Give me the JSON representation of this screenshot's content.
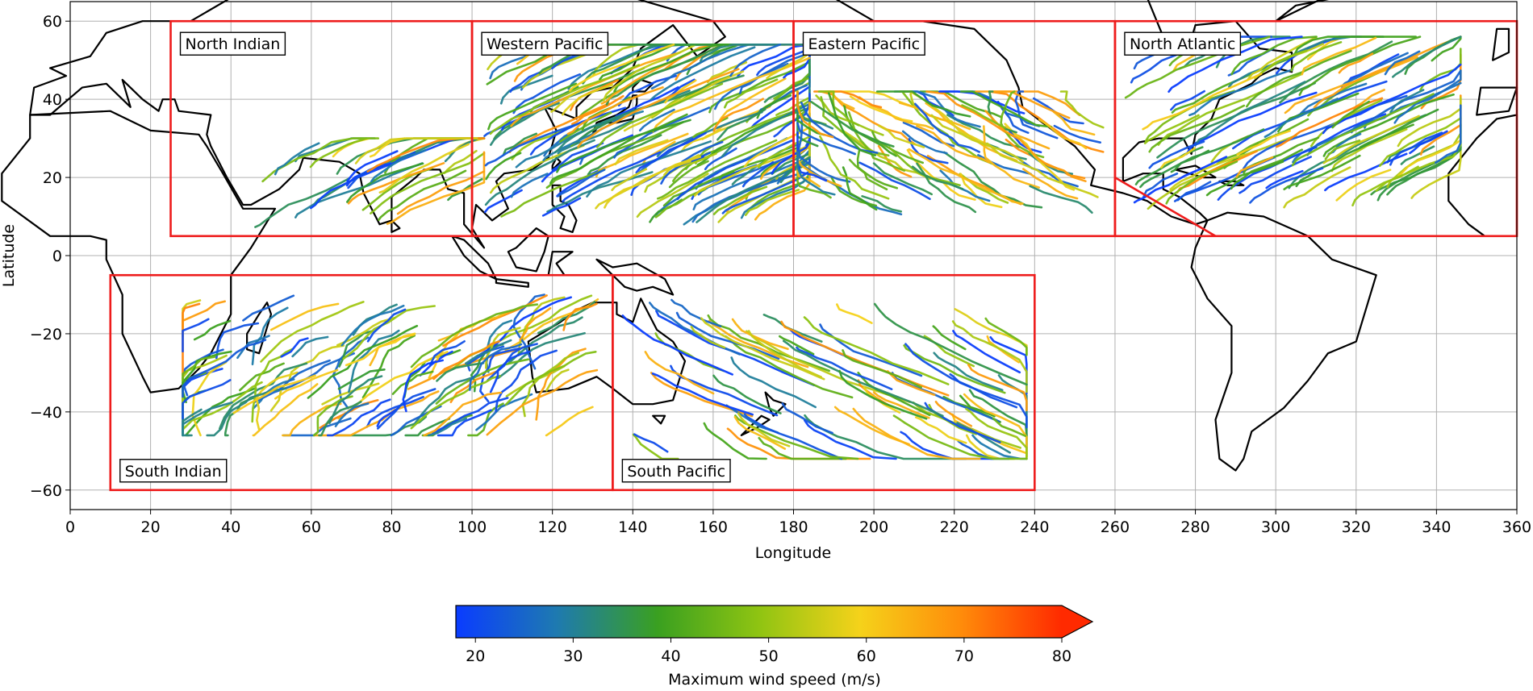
{
  "chart_data": {
    "type": "map",
    "title": "",
    "xlabel": "Longitude",
    "ylabel": "Latitude",
    "xlim": [
      0,
      360
    ],
    "ylim": [
      -65,
      65
    ],
    "xticks": [
      0,
      20,
      40,
      60,
      80,
      100,
      120,
      140,
      160,
      180,
      200,
      220,
      240,
      260,
      280,
      300,
      320,
      340,
      360
    ],
    "yticks": [
      -60,
      -40,
      -20,
      0,
      20,
      40,
      60
    ],
    "grid": true,
    "basins": [
      {
        "name": "North Indian",
        "lon": [
          25,
          100
        ],
        "lat": [
          5,
          60
        ]
      },
      {
        "name": "Western Pacific",
        "lon": [
          100,
          180
        ],
        "lat": [
          5,
          60
        ]
      },
      {
        "name": "Eastern Pacific",
        "lon": [
          180,
          260
        ],
        "lat": [
          5,
          60
        ]
      },
      {
        "name": "North Atlantic",
        "lon": [
          260,
          360
        ],
        "lat": [
          5,
          60
        ],
        "cutoff_line": [
          [
            260,
            20
          ],
          [
            285,
            5
          ]
        ]
      },
      {
        "name": "South Indian",
        "lon": [
          10,
          135
        ],
        "lat": [
          -60,
          -5
        ]
      },
      {
        "name": "South Pacific",
        "lon": [
          135,
          240
        ],
        "lat": [
          -60,
          -5
        ]
      }
    ],
    "track_clusters": [
      {
        "basin": "North Indian",
        "lon": [
          45,
          97
        ],
        "lat": [
          7,
          26
        ],
        "dir": 1,
        "count": 30
      },
      {
        "basin": "Western Pacific",
        "lon": [
          103,
          178
        ],
        "lat": [
          8,
          50
        ],
        "dir": 1,
        "count": 170
      },
      {
        "basin": "Eastern Pacific",
        "lon": [
          185,
          258
        ],
        "lat": [
          10,
          38
        ],
        "dir": -1,
        "count": 95
      },
      {
        "basin": "North Atlantic",
        "lon": [
          262,
          340
        ],
        "lat": [
          12,
          52
        ],
        "dir": 1,
        "count": 115
      },
      {
        "basin": "South Indian",
        "lon": [
          32,
          132
        ],
        "lat": [
          -42,
          -10
        ],
        "dir": -1,
        "count": 120
      },
      {
        "basin": "South Pacific",
        "lon": [
          137,
          232
        ],
        "lat": [
          -48,
          -11
        ],
        "dir": 1,
        "count": 85
      }
    ],
    "colorbar": {
      "label": "Maximum wind speed (m/s)",
      "min": 18,
      "max": 80,
      "extend": "max",
      "ticks": [
        20,
        30,
        40,
        50,
        60,
        70,
        80
      ],
      "colors": [
        "#0a3cff",
        "#1e7ab0",
        "#3aa020",
        "#8fc412",
        "#f5d21a",
        "#ff8c0a",
        "#ff2a00"
      ]
    }
  },
  "colors": {
    "box": "#ee1c1c",
    "coast": "#000000",
    "grid": "#b0b0b0"
  }
}
